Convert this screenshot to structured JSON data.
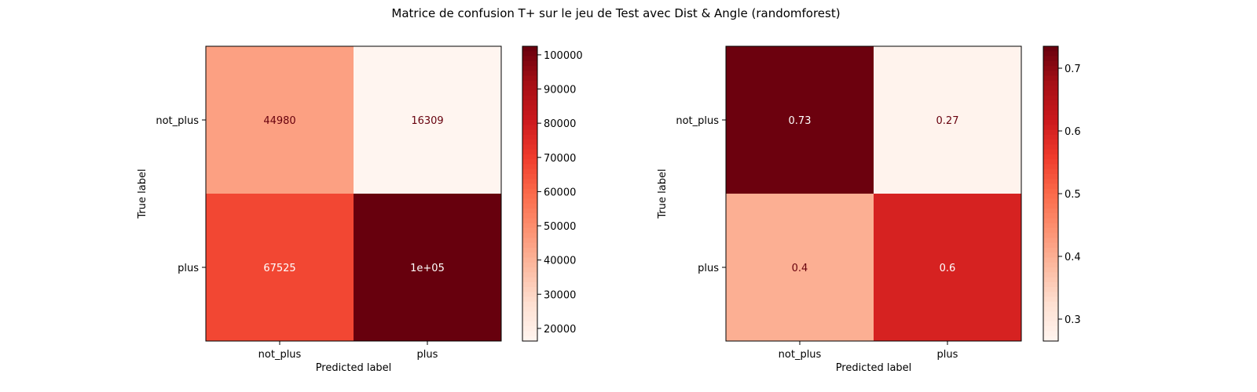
{
  "figure": {
    "title": "Matrice de confusion T+ sur le jeu de Test avec Dist & Angle (randomforest)"
  },
  "chart_data": [
    {
      "type": "heatmap",
      "xlabel": "Predicted label",
      "ylabel": "True label",
      "x_categories": [
        "not_plus",
        "plus"
      ],
      "y_categories": [
        "not_plus",
        "plus"
      ],
      "values": [
        [
          44980,
          16309
        ],
        [
          67525,
          102500
        ]
      ],
      "cell_labels": [
        [
          "44980",
          "16309"
        ],
        [
          "67525",
          "1e+05"
        ]
      ],
      "colormap": "Reds",
      "colorbar": {
        "range": [
          16309,
          102500
        ],
        "ticks": [
          20000,
          30000,
          40000,
          50000,
          60000,
          70000,
          80000,
          90000,
          100000
        ],
        "tick_labels": [
          "20000",
          "30000",
          "40000",
          "50000",
          "60000",
          "70000",
          "80000",
          "90000",
          "100000"
        ]
      }
    },
    {
      "type": "heatmap",
      "xlabel": "Predicted label",
      "ylabel": "True label",
      "x_categories": [
        "not_plus",
        "plus"
      ],
      "y_categories": [
        "not_plus",
        "plus"
      ],
      "values": [
        [
          0.73,
          0.27
        ],
        [
          0.4,
          0.6
        ]
      ],
      "cell_labels": [
        [
          "0.73",
          "0.27"
        ],
        [
          "0.4",
          "0.6"
        ]
      ],
      "colormap": "Reds",
      "colorbar": {
        "range": [
          0.265,
          0.735
        ],
        "ticks": [
          0.3,
          0.4,
          0.5,
          0.6,
          0.7
        ],
        "tick_labels": [
          "0.3",
          "0.4",
          "0.5",
          "0.6",
          "0.7"
        ]
      }
    }
  ]
}
